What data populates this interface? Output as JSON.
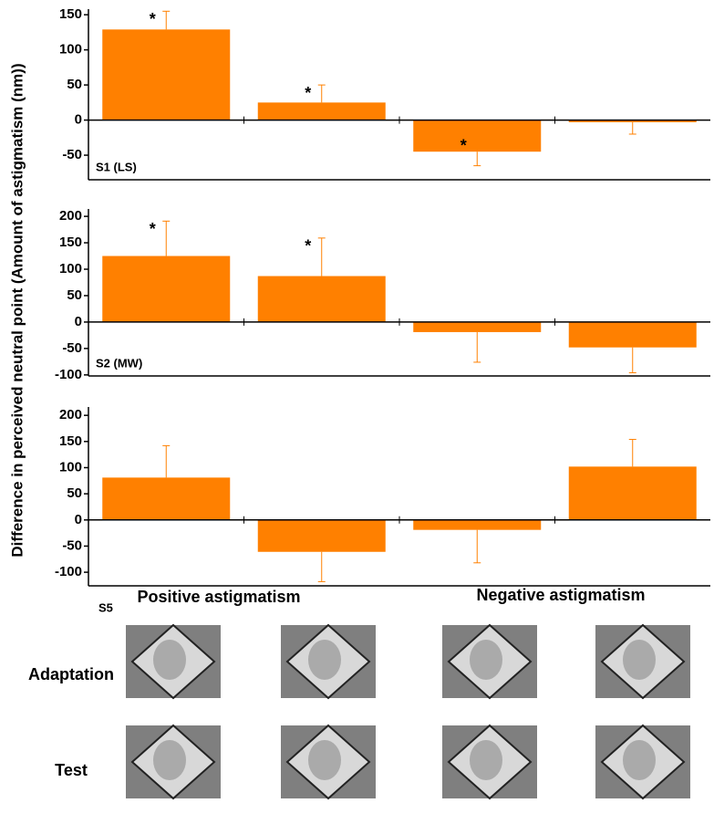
{
  "figure": {
    "y_label": "Difference in perceived neutral point (Amount of astigmatism (nm))",
    "group_labels": [
      "Positive astigmatism",
      "Negative astigmatism"
    ],
    "image_rows": [
      "Adaptation",
      "Test"
    ]
  },
  "chart_data": [
    {
      "type": "bar",
      "label": "S1 (LS)",
      "color": "#ff8000",
      "values": [
        129,
        25,
        -45,
        -3
      ],
      "errors": [
        26,
        25,
        20,
        17
      ],
      "annotations": [
        "*",
        "*",
        "*",
        null
      ],
      "ylim": [
        -85,
        158
      ],
      "yticks": [
        -50,
        0,
        50,
        100,
        150
      ]
    },
    {
      "type": "bar",
      "label": "S2 (MW)",
      "color": "#ff8000",
      "values": [
        125,
        87,
        -19,
        -48
      ],
      "errors": [
        66,
        72,
        57,
        48
      ],
      "annotations": [
        "*",
        "*",
        null,
        null
      ],
      "ylim": [
        -102,
        214
      ],
      "yticks": [
        -100,
        -50,
        0,
        50,
        100,
        150,
        200
      ]
    },
    {
      "type": "bar",
      "label": "S5",
      "color": "#ff8000",
      "values": [
        81,
        -61,
        -19,
        102
      ],
      "errors": [
        61,
        57,
        63,
        52
      ],
      "annotations": [
        null,
        null,
        null,
        null
      ],
      "ylim": [
        -126,
        216
      ],
      "yticks": [
        -100,
        -50,
        0,
        50,
        100,
        150,
        200
      ]
    }
  ]
}
